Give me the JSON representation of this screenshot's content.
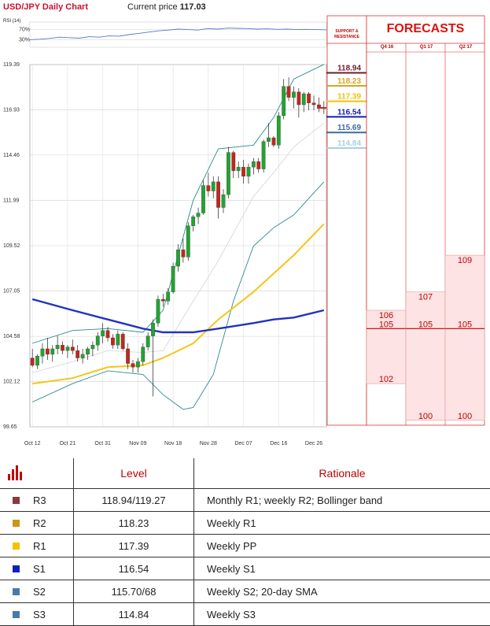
{
  "header": {
    "title": "USD/JPY Daily Chart",
    "price_label": "Current price",
    "price_value": "117.03"
  },
  "rsi": {
    "label": "RSI (14)",
    "ticks": [
      "70%",
      "30%"
    ],
    "values": [
      30,
      32,
      35,
      40,
      38,
      36,
      42,
      40,
      45,
      44,
      50,
      55,
      60,
      65,
      68,
      72,
      70,
      68,
      74,
      72,
      76,
      75,
      74,
      72,
      73,
      71,
      72,
      70,
      71,
      70,
      69
    ]
  },
  "chart_data": [
    {
      "type": "candlestick",
      "title": "USD/JPY Daily Chart",
      "y_ticks": [
        "119.39",
        "116.93",
        "114.46",
        "111.99",
        "109.52",
        "107.05",
        "104.58",
        "102.12",
        "99.65"
      ],
      "ylim": [
        99.65,
        119.39
      ],
      "x_ticks": [
        "Oct 12",
        "Oct 21",
        "Oct 31",
        "Nov 09",
        "Nov 18",
        "Nov 28",
        "Dec 07",
        "Dec 16",
        "Dec 26"
      ],
      "candles": [
        [
          103.4,
          103.9,
          102.9,
          103.0
        ],
        [
          103.0,
          103.6,
          102.8,
          103.5
        ],
        [
          103.5,
          104.2,
          103.1,
          103.9
        ],
        [
          103.9,
          104.5,
          103.3,
          103.6
        ],
        [
          103.6,
          104.1,
          103.2,
          103.9
        ],
        [
          103.9,
          104.6,
          103.6,
          104.1
        ],
        [
          104.1,
          104.3,
          103.6,
          103.8
        ],
        [
          103.8,
          104.1,
          103.4,
          104.0
        ],
        [
          104.0,
          104.4,
          103.6,
          103.8
        ],
        [
          103.8,
          104.1,
          103.2,
          103.4
        ],
        [
          103.4,
          103.9,
          103.1,
          103.6
        ],
        [
          103.6,
          104.0,
          103.3,
          103.9
        ],
        [
          103.9,
          104.3,
          103.5,
          104.1
        ],
        [
          104.1,
          104.8,
          103.8,
          104.6
        ],
        [
          104.6,
          105.3,
          104.2,
          104.9
        ],
        [
          104.9,
          105.1,
          104.3,
          104.5
        ],
        [
          104.5,
          104.7,
          103.9,
          104.1
        ],
        [
          104.1,
          104.9,
          103.9,
          104.7
        ],
        [
          104.7,
          104.8,
          103.8,
          103.9
        ],
        [
          103.9,
          104.2,
          102.8,
          103.1
        ],
        [
          103.1,
          103.3,
          102.6,
          102.9
        ],
        [
          102.9,
          103.4,
          102.6,
          103.2
        ],
        [
          103.2,
          104.2,
          103.0,
          104.0
        ],
        [
          104.0,
          104.8,
          103.8,
          104.6
        ],
        [
          104.6,
          105.5,
          101.3,
          105.3
        ],
        [
          105.3,
          106.8,
          105.1,
          106.6
        ],
        [
          106.6,
          106.9,
          106.2,
          106.5
        ],
        [
          106.5,
          107.2,
          106.3,
          107.0
        ],
        [
          107.0,
          108.6,
          106.9,
          108.4
        ],
        [
          108.4,
          109.6,
          108.1,
          109.3
        ],
        [
          109.3,
          109.9,
          108.6,
          108.9
        ],
        [
          108.9,
          110.8,
          108.7,
          110.6
        ],
        [
          110.6,
          111.2,
          110.3,
          111.1
        ],
        [
          111.1,
          111.6,
          110.7,
          111.3
        ],
        [
          111.3,
          113.1,
          111.2,
          112.8
        ],
        [
          112.8,
          113.5,
          112.2,
          112.5
        ],
        [
          112.5,
          113.3,
          112.1,
          113.0
        ],
        [
          113.0,
          113.3,
          111.0,
          111.6
        ],
        [
          111.6,
          112.6,
          111.3,
          112.3
        ],
        [
          112.3,
          114.9,
          112.1,
          114.6
        ],
        [
          114.6,
          114.7,
          113.2,
          113.6
        ],
        [
          113.6,
          114.1,
          113.2,
          113.8
        ],
        [
          113.8,
          114.2,
          112.9,
          113.3
        ],
        [
          113.3,
          114.0,
          112.9,
          113.8
        ],
        [
          113.8,
          114.3,
          113.4,
          114.1
        ],
        [
          114.1,
          114.3,
          113.5,
          113.7
        ],
        [
          113.7,
          115.3,
          113.5,
          115.2
        ],
        [
          115.2,
          116.2,
          114.9,
          115.4
        ],
        [
          115.4,
          115.5,
          114.9,
          115.0
        ],
        [
          115.0,
          116.8,
          114.8,
          116.6
        ],
        [
          116.6,
          118.6,
          116.4,
          118.2
        ],
        [
          118.2,
          118.7,
          117.4,
          117.6
        ],
        [
          117.6,
          118.2,
          117.0,
          117.9
        ],
        [
          117.9,
          118.1,
          116.5,
          117.2
        ],
        [
          117.2,
          117.9,
          116.8,
          117.8
        ],
        [
          117.8,
          117.9,
          116.9,
          117.3
        ],
        [
          117.3,
          117.7,
          116.9,
          117.2
        ],
        [
          117.2,
          117.6,
          116.8,
          117.0
        ],
        [
          117.0,
          117.4,
          116.7,
          117.03
        ]
      ],
      "series": [
        {
          "name": "upper band",
          "color": "#2a8c8c",
          "values": [
            [
              0,
              104.2
            ],
            [
              8,
              104.9
            ],
            [
              15,
              105.0
            ],
            [
              22,
              104.8
            ],
            [
              26,
              106.0
            ],
            [
              32,
              112.0
            ],
            [
              37,
              114.8
            ],
            [
              44,
              115.0
            ],
            [
              48,
              116.5
            ],
            [
              52,
              118.6
            ],
            [
              58,
              119.4
            ]
          ]
        },
        {
          "name": "lower band",
          "color": "#2a8c8c",
          "values": [
            [
              0,
              101.0
            ],
            [
              8,
              102.0
            ],
            [
              15,
              102.7
            ],
            [
              22,
              102.5
            ],
            [
              26,
              101.4
            ],
            [
              30,
              100.6
            ],
            [
              32,
              100.7
            ],
            [
              36,
              102.5
            ],
            [
              40,
              106.5
            ],
            [
              44,
              109.5
            ],
            [
              48,
              110.5
            ],
            [
              52,
              111.2
            ],
            [
              58,
              113.0
            ]
          ]
        },
        {
          "name": "mid band",
          "color": "#d8d8d8",
          "values": [
            [
              0,
              102.6
            ],
            [
              8,
              103.2
            ],
            [
              15,
              103.8
            ],
            [
              22,
              103.7
            ],
            [
              26,
              103.8
            ],
            [
              32,
              106.5
            ],
            [
              37,
              108.7
            ],
            [
              44,
              112.2
            ],
            [
              48,
              113.5
            ],
            [
              52,
              114.9
            ],
            [
              58,
              116.2
            ]
          ]
        },
        {
          "name": "slow SMA",
          "color": "#f5c518",
          "values": [
            [
              0,
              102.0
            ],
            [
              8,
              102.3
            ],
            [
              15,
              102.9
            ],
            [
              22,
              103.0
            ],
            [
              26,
              103.4
            ],
            [
              32,
              104.2
            ],
            [
              37,
              105.5
            ],
            [
              44,
              107.0
            ],
            [
              48,
              108.0
            ],
            [
              52,
              109.0
            ],
            [
              58,
              110.7
            ]
          ]
        },
        {
          "name": "long SMA",
          "color": "#2233bb",
          "values": [
            [
              0,
              106.6
            ],
            [
              8,
              106.0
            ],
            [
              15,
              105.5
            ],
            [
              22,
              105.0
            ],
            [
              26,
              104.8
            ],
            [
              32,
              104.8
            ],
            [
              37,
              105.0
            ],
            [
              44,
              105.3
            ],
            [
              48,
              105.5
            ],
            [
              52,
              105.6
            ],
            [
              58,
              106.0
            ]
          ]
        }
      ]
    },
    {
      "type": "table",
      "support_resistance": [
        {
          "value": "118.94",
          "color": "#6b1f2a"
        },
        {
          "value": "118.23",
          "color": "#d9a520"
        },
        {
          "value": "117.39",
          "color": "#f2c200"
        },
        {
          "value": "116.54",
          "color": "#1020b0"
        },
        {
          "value": "115.69",
          "color": "#3a6ea0"
        },
        {
          "value": "114.84",
          "color": "#a8cfe0"
        }
      ],
      "forecasts": {
        "title": "FORECASTS",
        "sr_header": "SUPPORT & RESISTANCE",
        "columns": [
          {
            "label": "Q4 16",
            "high": "106",
            "mid": "105",
            "low": "102"
          },
          {
            "label": "Q1 17",
            "high": "107",
            "mid": "105",
            "low": "100"
          },
          {
            "label": "Q2 17",
            "high": "109",
            "mid": "105",
            "low": "100"
          }
        ]
      }
    }
  ],
  "levels_table": {
    "headers": {
      "level": "Level",
      "rationale": "Rationale"
    },
    "rows": [
      {
        "name": "R3",
        "color": "#8b3a3a",
        "level": "118.94/119.27",
        "rationale": "Monthly R1; weekly R2; Bollinger band"
      },
      {
        "name": "R2",
        "color": "#c9961a",
        "level": "118.23",
        "rationale": "Weekly R1"
      },
      {
        "name": "R1",
        "color": "#f2c200",
        "level": "117.39",
        "rationale": "Weekly PP"
      },
      {
        "name": "S1",
        "color": "#1020c0",
        "level": "116.54",
        "rationale": "Weekly S1"
      },
      {
        "name": "S2",
        "color": "#4a7aa8",
        "level": "115.70/68",
        "rationale": "Weekly S2; 20-day SMA"
      },
      {
        "name": "S3",
        "color": "#4a7aa8",
        "level": "114.84",
        "rationale": "Weekly S3"
      }
    ]
  }
}
